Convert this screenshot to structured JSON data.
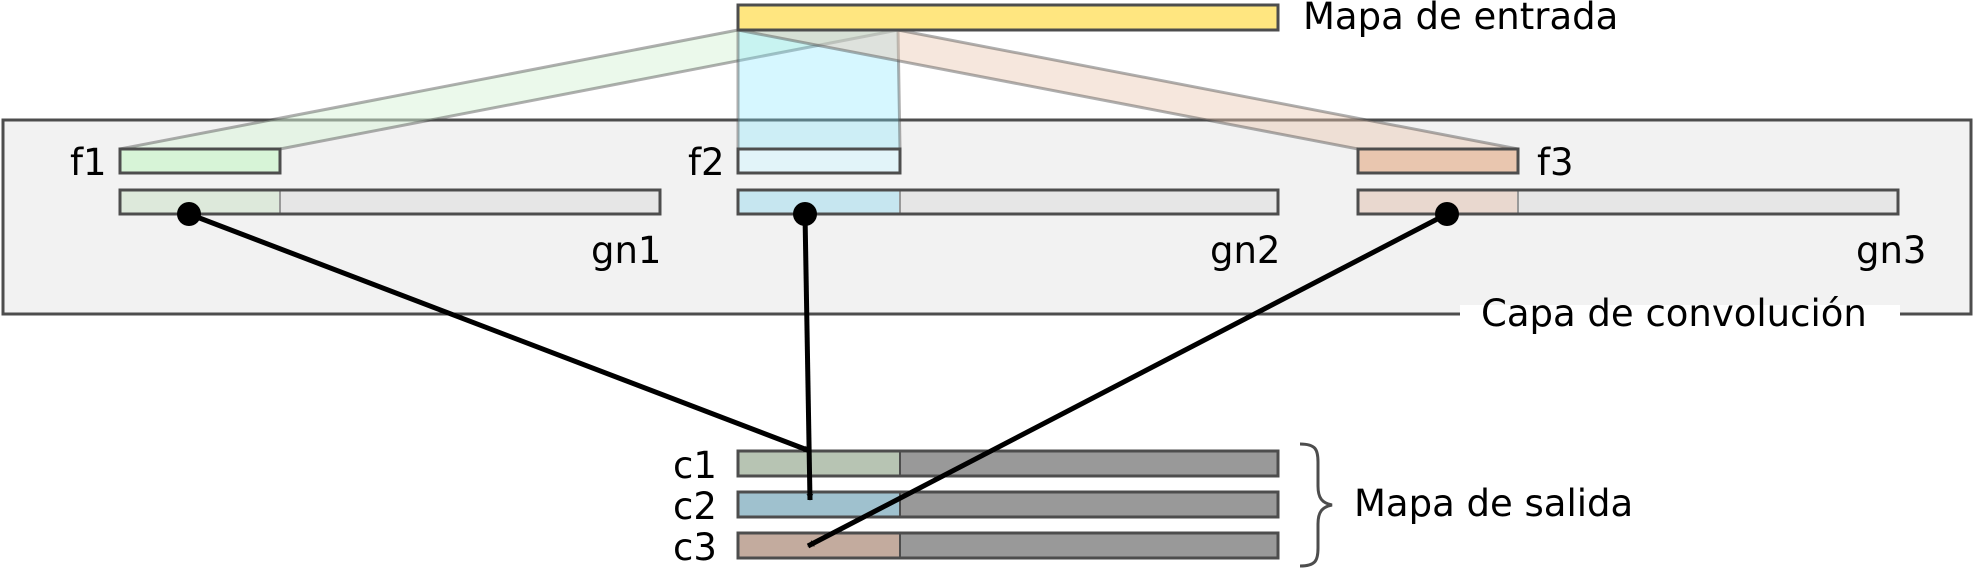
{
  "input_map": {
    "label": "Mapa de entrada"
  },
  "conv_layer": {
    "label": "Capa de convolución"
  },
  "output_map": {
    "label": "Mapa de salida"
  },
  "filters": [
    {
      "label": "f1",
      "group_label": "gn1"
    },
    {
      "label": "f2",
      "group_label": "gn2"
    },
    {
      "label": "f3",
      "group_label": "gn3"
    }
  ],
  "channels": [
    {
      "label": "c1"
    },
    {
      "label": "c2"
    },
    {
      "label": "c3"
    }
  ],
  "colors": {
    "input_fill": "#ffe680",
    "layer_fill": "#f2f2f2",
    "group_fill": "#e6e6e6",
    "output_fill": "#999999",
    "f1_fill": "#d7f4d7",
    "f2_fill": "#d5f6ff",
    "f3_fill": "#e9c6af",
    "g1_part": "#dde9db",
    "g2_part": "#c6e6f0",
    "g3_part": "#e9d8cf",
    "c1_part": "#b7c4b3",
    "c2_part": "#9fc1ce",
    "c3_part": "#c3ab9e",
    "proj1": "#d7f4d7",
    "proj2": "#80e5ff",
    "proj3": "#e9c6af",
    "stroke": "#4d4d4d",
    "arrow": "#000000"
  }
}
